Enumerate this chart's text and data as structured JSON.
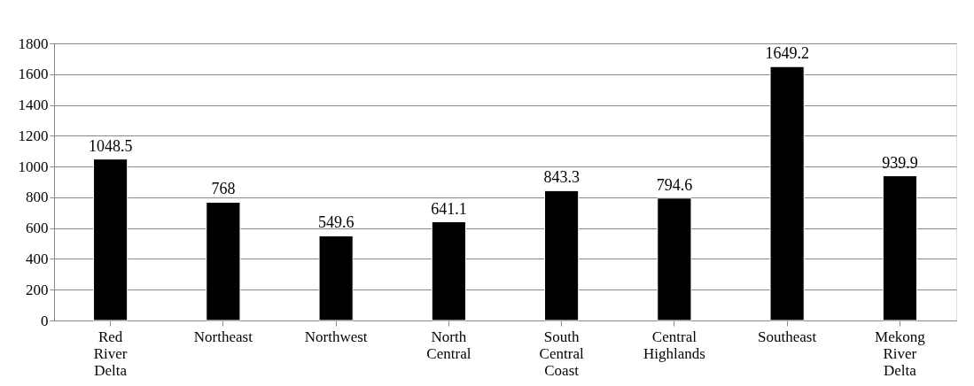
{
  "chart_data": {
    "type": "bar",
    "categories": [
      "Red River Delta",
      "Northeast",
      "Northwest",
      "North Central",
      "South Central Coast",
      "Central Highlands",
      "Southeast",
      "Mekong River Delta"
    ],
    "values": [
      1048.5,
      768,
      549.6,
      641.1,
      843.3,
      794.6,
      1649.2,
      939.9
    ],
    "color": "#000000",
    "ylim": [
      0,
      1800
    ],
    "yticks": [
      0,
      200,
      400,
      600,
      800,
      1000,
      1200,
      1400,
      1600,
      1800
    ],
    "grid": "y",
    "data_labels": true
  }
}
